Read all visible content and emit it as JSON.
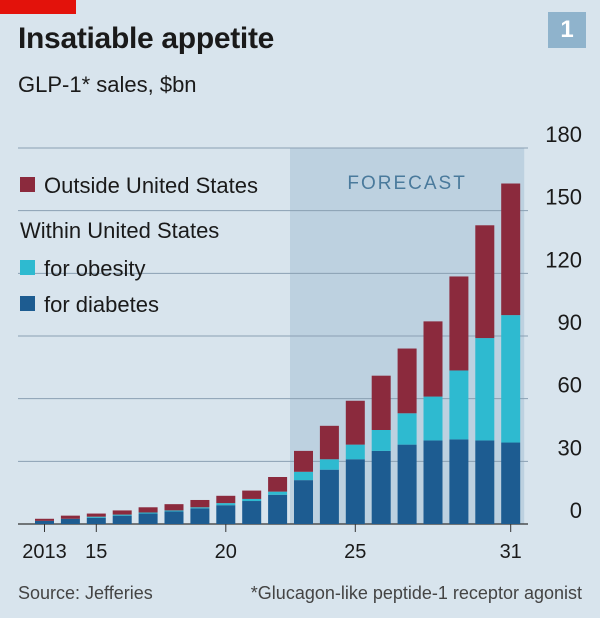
{
  "header": {
    "title": "Insatiable appetite",
    "subtitle": "GLP-1* sales, $bn",
    "badge": "1"
  },
  "footer": {
    "source": "Source: Jefferies",
    "footnote": "*Glucagon-like peptide-1 receptor agonist"
  },
  "colors": {
    "background": "#d8e4ed",
    "forecast_band": "#bdd1e0",
    "outside_us": "#8b2a3d",
    "obesity": "#2ebad0",
    "diabetes": "#1d5c91",
    "grid": "#8aa0b3",
    "brand_red": "#e3120b",
    "badge": "#8fb3cc"
  },
  "chart_data": {
    "type": "bar",
    "stacked": true,
    "x": [
      2013,
      2014,
      2015,
      2016,
      2017,
      2018,
      2019,
      2020,
      2021,
      2022,
      2023,
      2024,
      2025,
      2026,
      2027,
      2028,
      2029,
      2030,
      2031
    ],
    "x_tick_labels": [
      {
        "year": 2013,
        "label": "2013"
      },
      {
        "year": 2015,
        "label": "15"
      },
      {
        "year": 2020,
        "label": "20"
      },
      {
        "year": 2025,
        "label": "25"
      },
      {
        "year": 2031,
        "label": "31"
      }
    ],
    "series": [
      {
        "name": "for diabetes",
        "group": "Within United States",
        "values": [
          1.5,
          2.5,
          3,
          4,
          5,
          6,
          7.5,
          9,
          11,
          14,
          21,
          26,
          31,
          35,
          38,
          40,
          40.5,
          40,
          39
        ]
      },
      {
        "name": "for obesity",
        "group": "Within United States",
        "values": [
          0,
          0,
          0.5,
          0.5,
          0.5,
          0.5,
          0.5,
          1,
          1,
          1.5,
          4,
          5,
          7,
          10,
          15,
          21,
          33,
          49,
          61
        ]
      },
      {
        "name": "Outside United States",
        "values": [
          1,
          1.5,
          1.5,
          2,
          2.5,
          3,
          3.5,
          3.5,
          4,
          7,
          10,
          16,
          21,
          26,
          31,
          36,
          45,
          54,
          63
        ]
      }
    ],
    "legend": {
      "outside": "Outside United States",
      "group_heading": "Within United States",
      "obesity": "for obesity",
      "diabetes": "for diabetes",
      "placement": "top-left"
    },
    "forecast": {
      "label": "FORECAST",
      "from_year": 2023,
      "to_year": 2031
    },
    "y_ticks": [
      "0",
      "30",
      "60",
      "90",
      "120",
      "150",
      "180"
    ],
    "ylim": [
      0,
      180
    ],
    "y_axis_side": "right",
    "grid": true
  }
}
